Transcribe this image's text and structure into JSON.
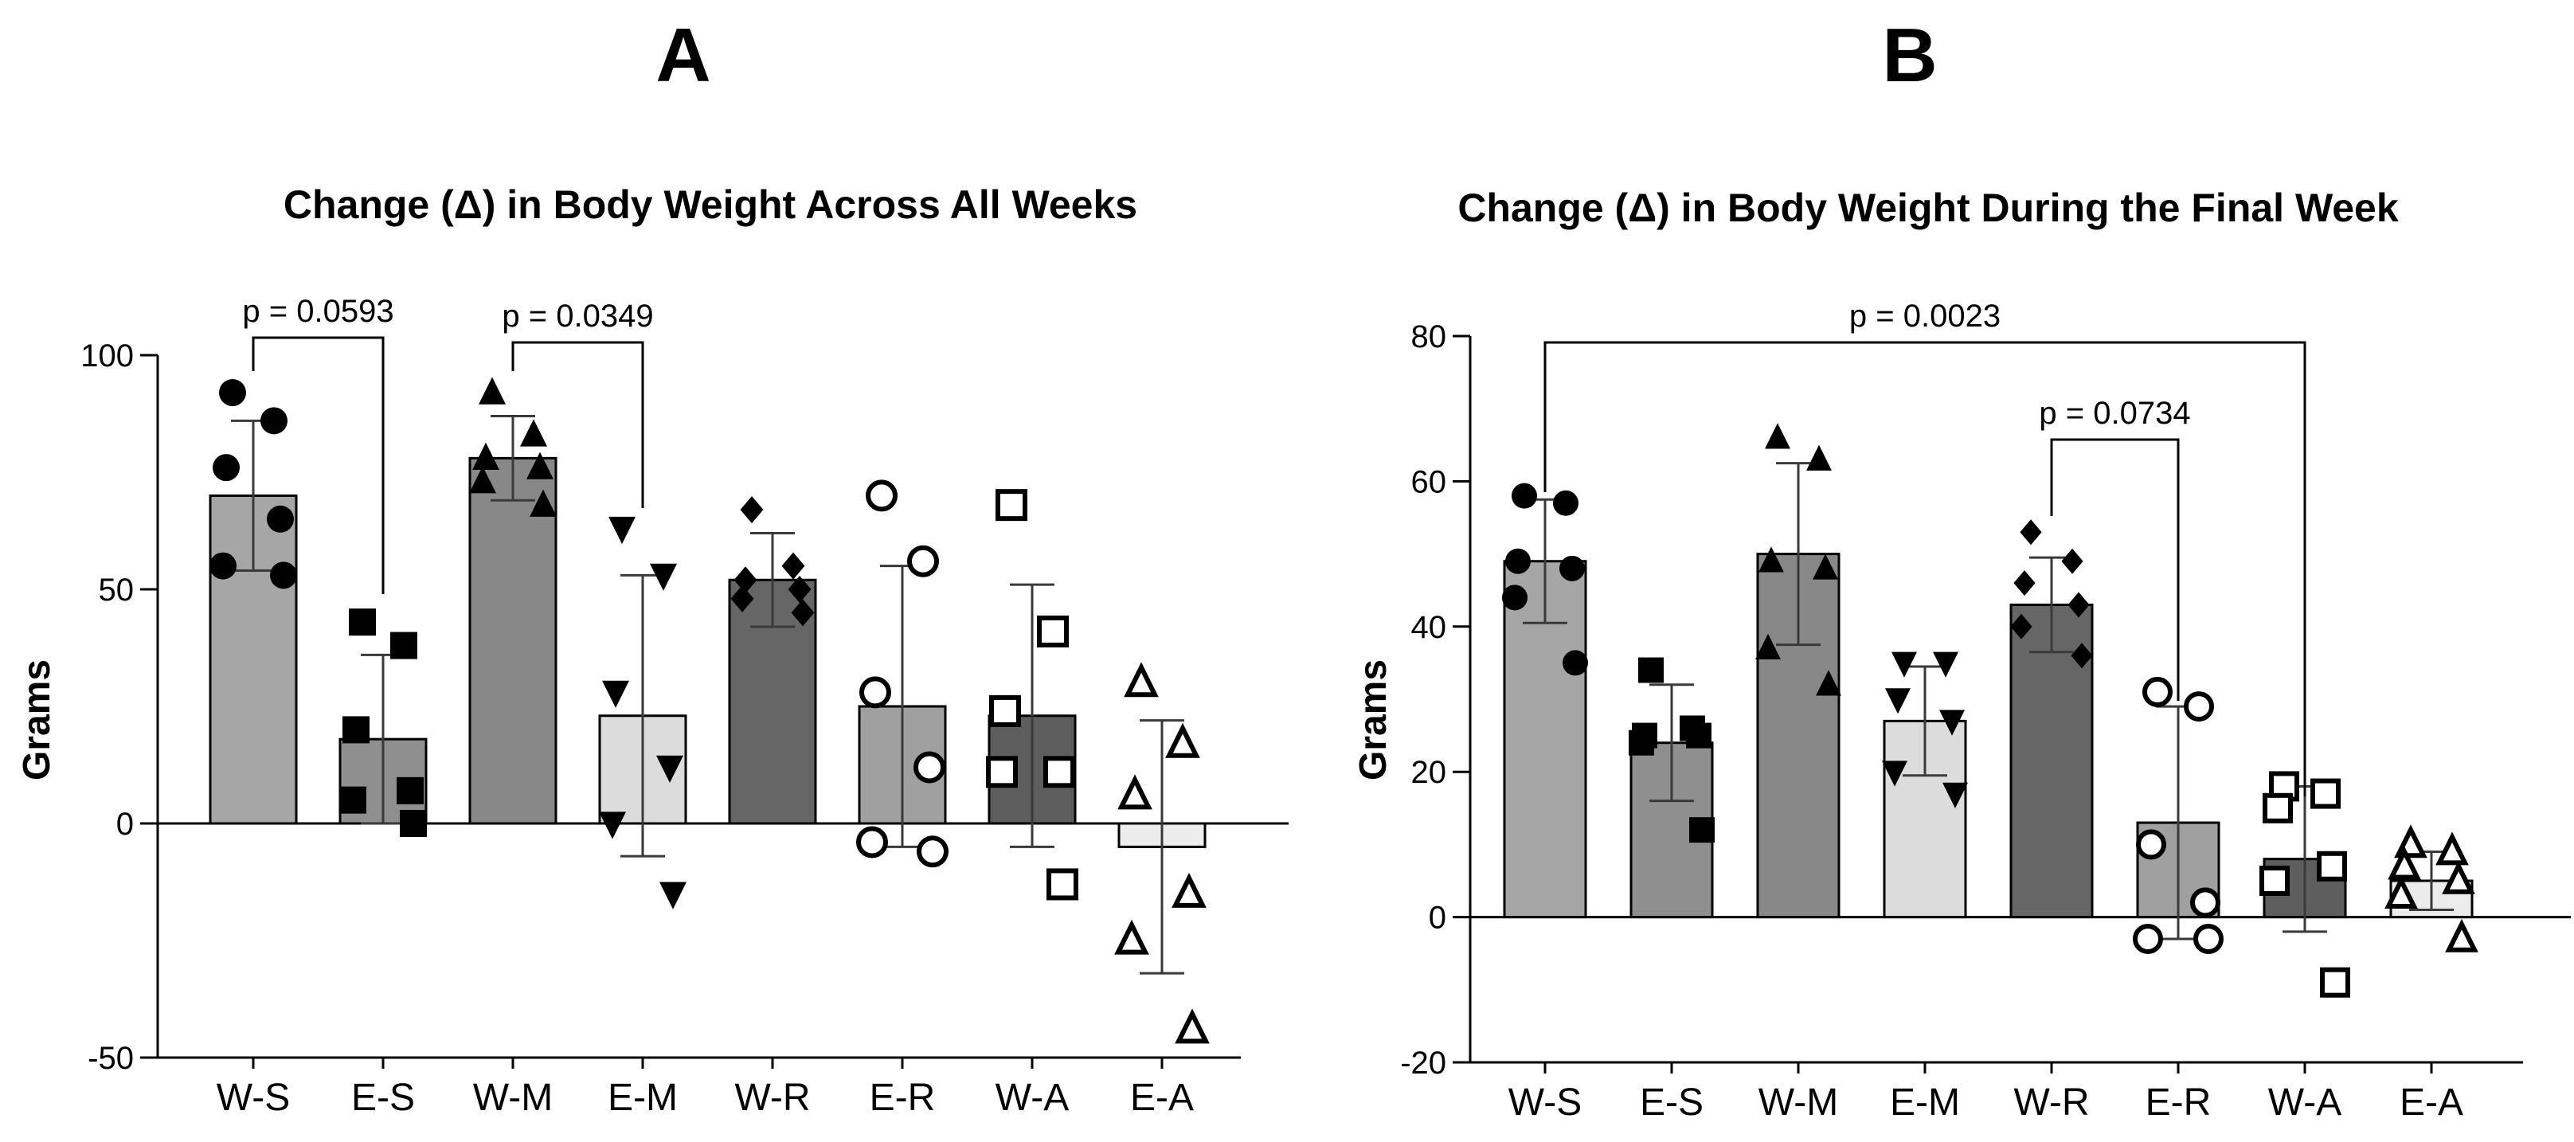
{
  "chart_data": [
    {
      "panel": "A",
      "type": "bar",
      "title": "Change (Δ) in Body Weight Across All Weeks",
      "xlabel": "",
      "ylabel": "Grams",
      "ylim": [
        -50,
        100
      ],
      "yticks": [
        -50,
        0,
        50,
        100
      ],
      "categories": [
        "W-S",
        "E-S",
        "W-M",
        "E-M",
        "W-R",
        "E-R",
        "W-A",
        "E-A"
      ],
      "values": [
        70,
        18,
        78,
        23,
        52,
        25,
        23,
        -5
      ],
      "sd": [
        16,
        18,
        9,
        30,
        10,
        30,
        28,
        27
      ],
      "bar_colors": [
        "#a6a6a6",
        "#8f8f8f",
        "#888888",
        "#dcdcdc",
        "#666666",
        "#a0a0a0",
        "#5e5e5e",
        "#ececec"
      ],
      "markers": [
        "circle",
        "square",
        "triangle",
        "triangle-down",
        "diamond",
        "circle-open",
        "square-open",
        "triangle-open"
      ],
      "points": [
        [
          92,
          86,
          76,
          65,
          55,
          53
        ],
        [
          43,
          38,
          20,
          7,
          5,
          0
        ],
        [
          92,
          83,
          78,
          76,
          73,
          68
        ],
        [
          63,
          53,
          28,
          12,
          0,
          -15
        ],
        [
          67,
          55,
          52,
          50,
          48,
          45
        ],
        [
          70,
          56,
          28,
          12,
          -4,
          -6
        ],
        [
          68,
          41,
          24,
          11,
          11,
          -13
        ],
        [
          30,
          17,
          6,
          -15,
          -25,
          -44
        ]
      ],
      "comparisons": [
        {
          "from": 0,
          "to": 1,
          "text": "p = 0.0593"
        },
        {
          "from": 2,
          "to": 3,
          "text": "p = 0.0349"
        }
      ]
    },
    {
      "panel": "B",
      "type": "bar",
      "title": "Change (Δ) in Body Weight During the Final Week",
      "xlabel": "",
      "ylabel": "Grams",
      "ylim": [
        -20,
        80
      ],
      "yticks": [
        -20,
        0,
        20,
        40,
        60,
        80
      ],
      "categories": [
        "W-S",
        "E-S",
        "W-M",
        "E-M",
        "W-R",
        "E-R",
        "W-A",
        "E-A"
      ],
      "values": [
        49,
        24,
        50,
        27,
        43,
        13,
        8,
        5
      ],
      "sd": [
        8.5,
        8,
        12.5,
        7.5,
        6.5,
        16,
        10,
        4
      ],
      "bar_colors": [
        "#a6a6a6",
        "#8f8f8f",
        "#888888",
        "#dcdcdc",
        "#666666",
        "#a0a0a0",
        "#5e5e5e",
        "#ececec"
      ],
      "markers": [
        "circle",
        "square",
        "triangle",
        "triangle-down",
        "diamond",
        "circle-open",
        "square-open",
        "triangle-open"
      ],
      "points": [
        [
          58,
          57,
          49,
          48,
          44,
          35
        ],
        [
          34,
          26,
          25,
          25,
          24,
          12
        ],
        [
          66,
          63,
          49,
          48,
          37,
          32
        ],
        [
          35,
          35,
          30,
          27,
          20,
          17
        ],
        [
          53,
          49,
          46,
          43,
          40,
          36
        ],
        [
          31,
          29,
          10,
          2,
          -3,
          -3
        ],
        [
          18,
          17,
          15,
          7,
          5,
          -9
        ],
        [
          10,
          9,
          7,
          5,
          3,
          -3
        ]
      ],
      "comparisons": [
        {
          "from": 0,
          "to": 6,
          "text": "p = 0.0023"
        },
        {
          "from": 4,
          "to": 5,
          "text": "p = 0.0734"
        }
      ]
    }
  ]
}
